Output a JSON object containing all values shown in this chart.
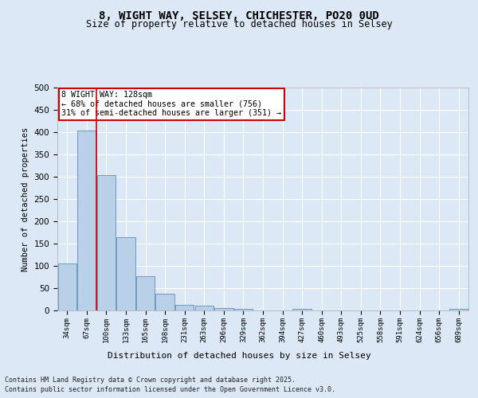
{
  "title_line1": "8, WIGHT WAY, SELSEY, CHICHESTER, PO20 0UD",
  "title_line2": "Size of property relative to detached houses in Selsey",
  "xlabel": "Distribution of detached houses by size in Selsey",
  "ylabel": "Number of detached properties",
  "categories": [
    "34sqm",
    "67sqm",
    "100sqm",
    "133sqm",
    "165sqm",
    "198sqm",
    "231sqm",
    "263sqm",
    "296sqm",
    "329sqm",
    "362sqm",
    "394sqm",
    "427sqm",
    "460sqm",
    "493sqm",
    "525sqm",
    "558sqm",
    "591sqm",
    "624sqm",
    "656sqm",
    "689sqm"
  ],
  "values": [
    106,
    404,
    304,
    165,
    77,
    38,
    13,
    10,
    6,
    4,
    0,
    0,
    4,
    0,
    0,
    0,
    0,
    0,
    0,
    0,
    3
  ],
  "bar_color": "#b8d0e8",
  "bar_edge_color": "#6090b8",
  "background_color": "#dce8f5",
  "grid_color": "#ffffff",
  "vline_color": "#cc0000",
  "annotation_box_color": "#cc0000",
  "ylim": [
    0,
    500
  ],
  "yticks": [
    0,
    50,
    100,
    150,
    200,
    250,
    300,
    350,
    400,
    450,
    500
  ],
  "annotation_text": "8 WIGHT WAY: 128sqm\n← 68% of detached houses are smaller (756)\n31% of semi-detached houses are larger (351) →",
  "footer_line1": "Contains HM Land Registry data © Crown copyright and database right 2025.",
  "footer_line2": "Contains public sector information licensed under the Open Government Licence v3.0."
}
